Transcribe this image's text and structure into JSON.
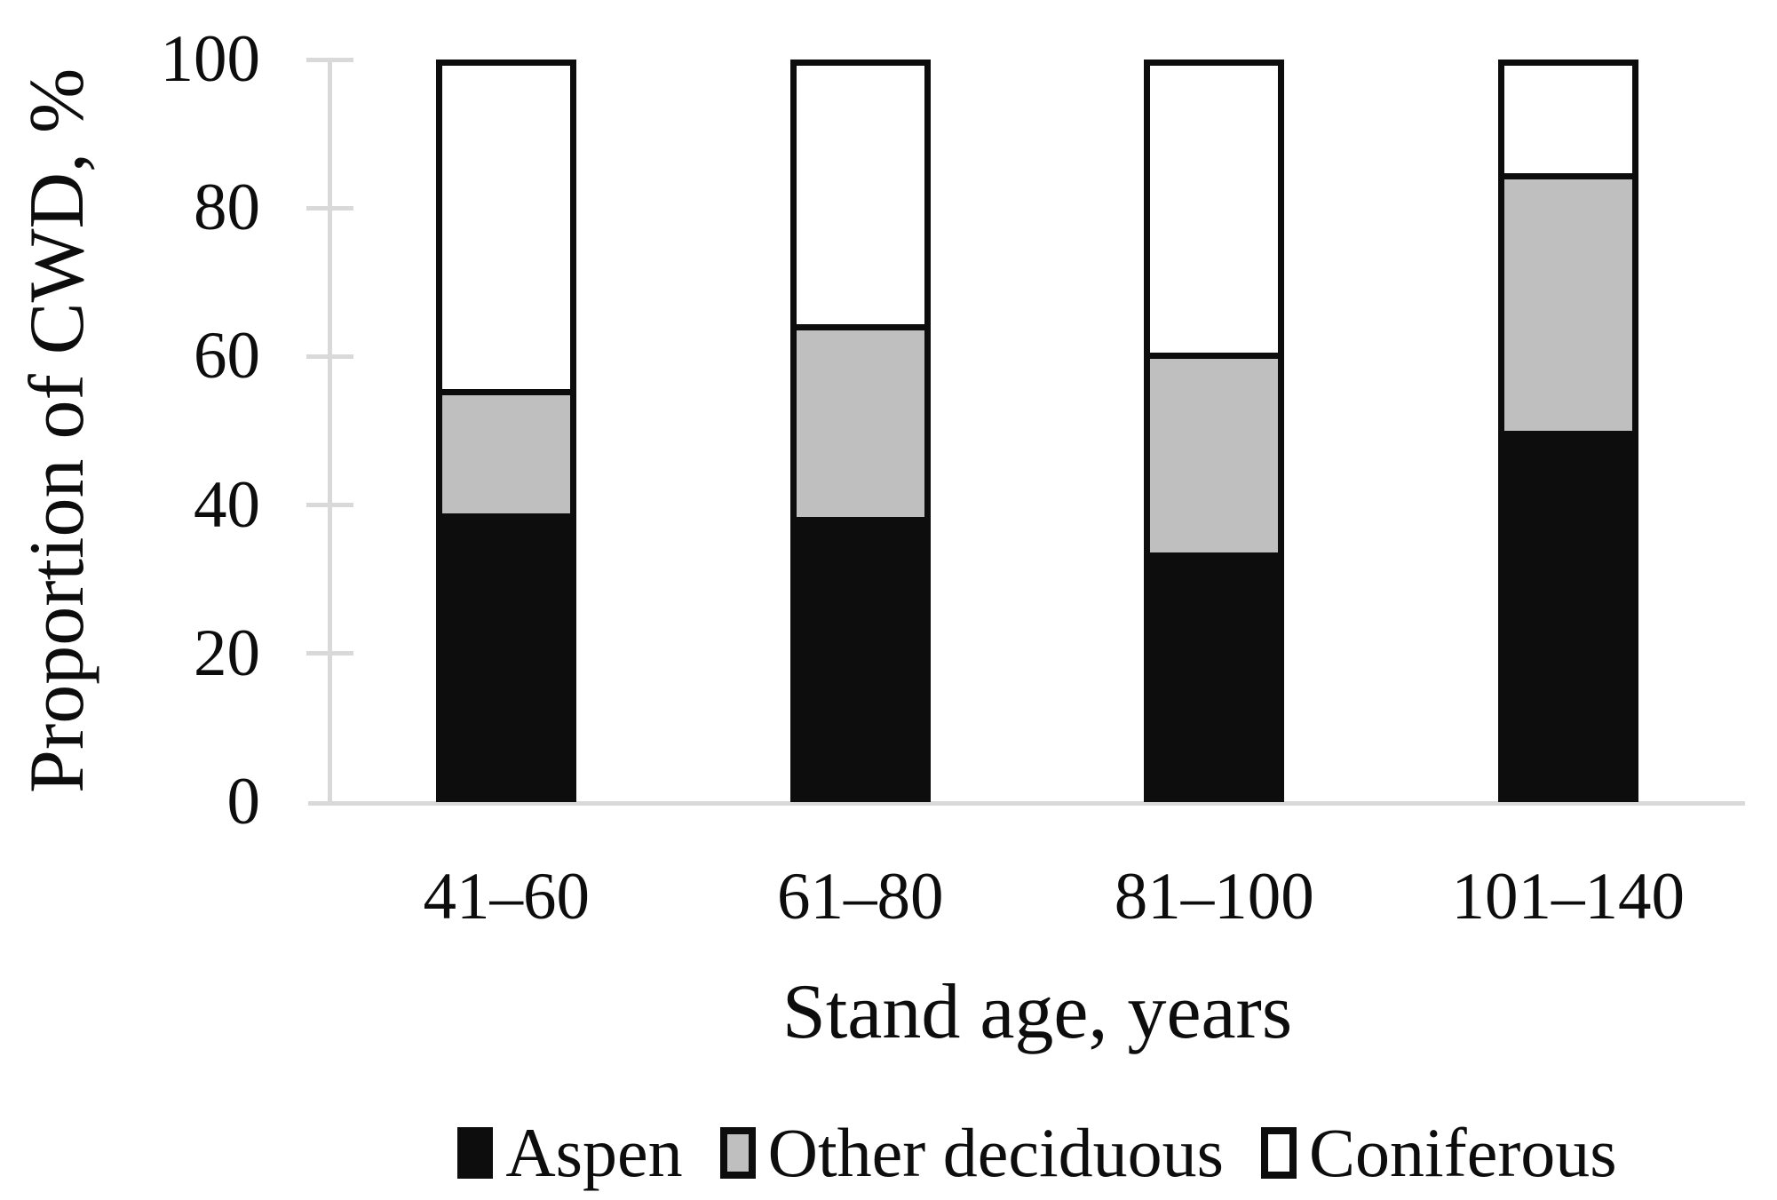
{
  "chart_data": {
    "type": "bar",
    "stacked": true,
    "categories": [
      "41–60",
      "61–80",
      "81–100",
      "101–140"
    ],
    "series": [
      {
        "name": "Aspen",
        "color": "#0d0d0d",
        "values": [
          38.5,
          38,
          33,
          50
        ]
      },
      {
        "name": "Other deciduous",
        "color": "#bfbfbf",
        "values": [
          16.5,
          26,
          27,
          35
        ]
      },
      {
        "name": "Coniferous",
        "color": "#ffffff",
        "values": [
          45,
          36,
          40,
          15
        ]
      }
    ],
    "xlabel": "Stand age, years",
    "ylabel": "Proportion of CWD, %",
    "ylim": [
      0,
      100
    ],
    "yticks": [
      0,
      20,
      40,
      60,
      80,
      100
    ],
    "legend_position": "bottom",
    "grid": false,
    "axis_color": "#d9d9d9",
    "bar_outline_color": "#0d0d0d"
  }
}
